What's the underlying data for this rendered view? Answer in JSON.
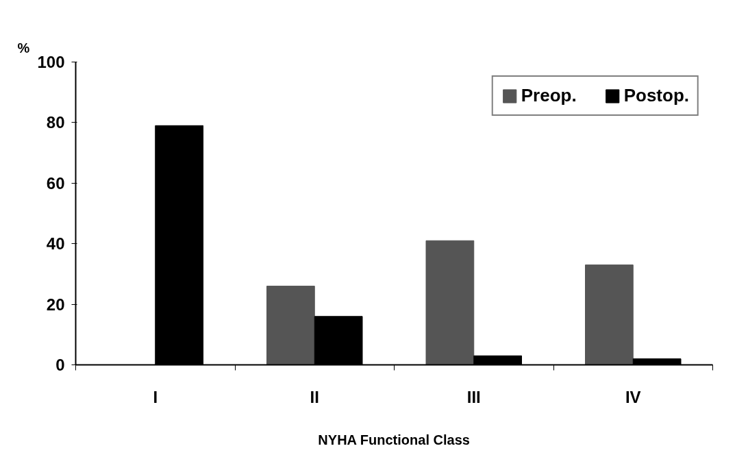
{
  "chart_data": {
    "type": "bar",
    "xlabel": "NYHA Functional Class",
    "ylabel": "%",
    "categories": [
      "I",
      "II",
      "III",
      "IV"
    ],
    "series": [
      {
        "name": "Preop.",
        "color": "#555555",
        "values": [
          0,
          26,
          41,
          33
        ]
      },
      {
        "name": "Postop.",
        "color": "#000000",
        "values": [
          79,
          16,
          3,
          2
        ]
      }
    ],
    "ylim": [
      0,
      100
    ],
    "yticks": [
      0,
      20,
      40,
      60,
      80,
      100
    ],
    "grid": false,
    "legend": "top right"
  }
}
